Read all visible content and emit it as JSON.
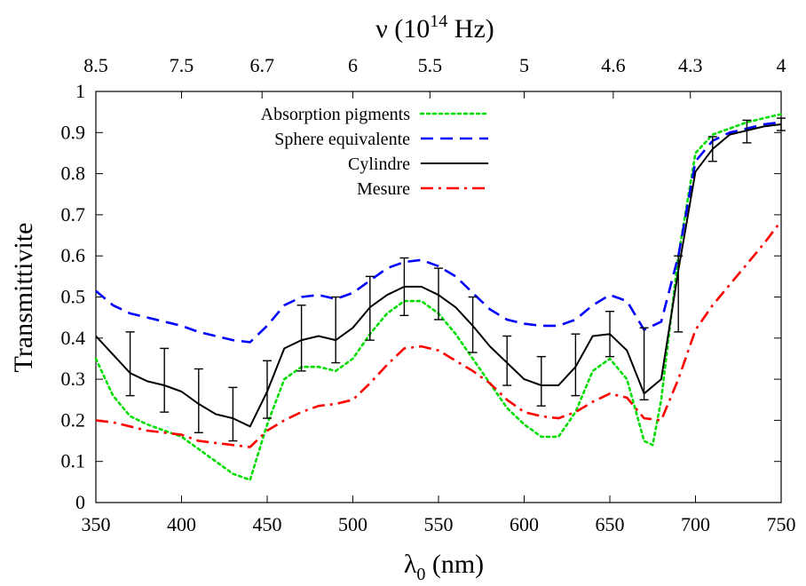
{
  "chart_data": {
    "type": "line",
    "xlabel": "λ",
    "xlabel_sub": "0",
    "xlabel_unit": " (nm)",
    "ylabel": "Transmittivite",
    "x2label": "ν (10",
    "x2label_sup": "14",
    "x2label_unit": " Hz)",
    "xlim": [
      350,
      750
    ],
    "ylim": [
      0,
      1
    ],
    "x_ticks": [
      350,
      400,
      450,
      500,
      550,
      600,
      650,
      700,
      750
    ],
    "y_ticks": [
      0,
      0.1,
      0.2,
      0.3,
      0.4,
      0.5,
      0.6,
      0.7,
      0.8,
      0.9,
      1
    ],
    "y_tick_labels": [
      "0",
      "0.1",
      "0.2",
      "0.3",
      "0.4",
      "0.5",
      "0.6",
      "0.7",
      "0.8",
      "0.9",
      "1"
    ],
    "top_ticks": [
      {
        "wavelength": 350,
        "label": "8.5"
      },
      {
        "wavelength": 400,
        "label": "7.5"
      },
      {
        "wavelength": 447,
        "label": "6.7"
      },
      {
        "wavelength": 500,
        "label": "6"
      },
      {
        "wavelength": 545,
        "label": "5.5"
      },
      {
        "wavelength": 600,
        "label": "5"
      },
      {
        "wavelength": 652,
        "label": "4.6"
      },
      {
        "wavelength": 697,
        "label": "4.3"
      },
      {
        "wavelength": 750,
        "label": "4"
      }
    ],
    "grid": false,
    "legend_position": "top-left",
    "series": [
      {
        "name": "Absorption pigments",
        "color": "#00dd00",
        "style": "dotted",
        "x": [
          350,
          360,
          370,
          380,
          390,
          400,
          410,
          420,
          430,
          440,
          450,
          460,
          470,
          480,
          490,
          500,
          510,
          520,
          530,
          540,
          550,
          560,
          570,
          580,
          590,
          600,
          610,
          620,
          630,
          640,
          650,
          660,
          670,
          675,
          680,
          690,
          700,
          710,
          720,
          730,
          740,
          750
        ],
        "y": [
          0.35,
          0.26,
          0.21,
          0.19,
          0.175,
          0.16,
          0.13,
          0.1,
          0.07,
          0.055,
          0.19,
          0.3,
          0.33,
          0.33,
          0.32,
          0.35,
          0.41,
          0.46,
          0.49,
          0.49,
          0.46,
          0.41,
          0.35,
          0.29,
          0.23,
          0.19,
          0.16,
          0.16,
          0.22,
          0.32,
          0.35,
          0.3,
          0.15,
          0.14,
          0.25,
          0.6,
          0.85,
          0.895,
          0.91,
          0.925,
          0.935,
          0.945
        ]
      },
      {
        "name": "Sphere equivalente",
        "color": "#0000ff",
        "style": "dashed",
        "x": [
          350,
          360,
          370,
          380,
          390,
          400,
          410,
          420,
          430,
          440,
          450,
          460,
          470,
          480,
          490,
          500,
          510,
          520,
          530,
          540,
          550,
          560,
          570,
          580,
          590,
          600,
          610,
          620,
          630,
          640,
          650,
          660,
          670,
          680,
          690,
          700,
          710,
          720,
          730,
          740,
          750
        ],
        "y": [
          0.515,
          0.48,
          0.46,
          0.45,
          0.44,
          0.43,
          0.415,
          0.405,
          0.395,
          0.39,
          0.43,
          0.48,
          0.5,
          0.505,
          0.495,
          0.51,
          0.54,
          0.57,
          0.585,
          0.59,
          0.575,
          0.55,
          0.51,
          0.47,
          0.445,
          0.435,
          0.43,
          0.43,
          0.445,
          0.48,
          0.505,
          0.49,
          0.42,
          0.44,
          0.6,
          0.83,
          0.88,
          0.9,
          0.91,
          0.92,
          0.925
        ]
      },
      {
        "name": "Cylindre",
        "color": "#000000",
        "style": "solid",
        "x": [
          350,
          360,
          370,
          380,
          390,
          400,
          410,
          420,
          430,
          440,
          450,
          460,
          470,
          480,
          490,
          500,
          510,
          520,
          530,
          540,
          550,
          560,
          570,
          580,
          590,
          600,
          610,
          620,
          630,
          640,
          650,
          660,
          670,
          680,
          690,
          700,
          710,
          720,
          730,
          740,
          750
        ],
        "y": [
          0.405,
          0.36,
          0.315,
          0.295,
          0.285,
          0.27,
          0.24,
          0.215,
          0.205,
          0.185,
          0.27,
          0.375,
          0.395,
          0.405,
          0.395,
          0.425,
          0.475,
          0.505,
          0.525,
          0.525,
          0.505,
          0.475,
          0.43,
          0.38,
          0.34,
          0.3,
          0.285,
          0.285,
          0.33,
          0.405,
          0.41,
          0.37,
          0.265,
          0.3,
          0.565,
          0.805,
          0.86,
          0.895,
          0.905,
          0.915,
          0.92
        ],
        "error_bars": {
          "x": [
            370,
            390,
            410,
            430,
            450,
            470,
            490,
            510,
            530,
            550,
            570,
            590,
            610,
            630,
            650,
            670,
            690,
            710,
            730,
            750
          ],
          "low": [
            0.26,
            0.22,
            0.17,
            0.15,
            0.205,
            0.32,
            0.34,
            0.395,
            0.455,
            0.445,
            0.365,
            0.285,
            0.235,
            0.26,
            0.355,
            0.25,
            0.415,
            0.83,
            0.875,
            0.905
          ],
          "high": [
            0.415,
            0.375,
            0.325,
            0.28,
            0.345,
            0.48,
            0.5,
            0.55,
            0.595,
            0.57,
            0.5,
            0.405,
            0.355,
            0.41,
            0.465,
            0.425,
            0.6,
            0.89,
            0.93,
            0.935
          ]
        }
      },
      {
        "name": "Mesure",
        "color": "#ff0000",
        "style": "dash-dot",
        "x": [
          350,
          360,
          370,
          380,
          390,
          400,
          410,
          420,
          430,
          440,
          450,
          460,
          470,
          480,
          490,
          500,
          510,
          520,
          530,
          540,
          550,
          560,
          570,
          580,
          590,
          600,
          610,
          620,
          630,
          640,
          650,
          660,
          670,
          680,
          690,
          700,
          710,
          720,
          730,
          740,
          750
        ],
        "y": [
          0.2,
          0.195,
          0.185,
          0.175,
          0.17,
          0.165,
          0.15,
          0.145,
          0.14,
          0.135,
          0.175,
          0.2,
          0.22,
          0.235,
          0.24,
          0.25,
          0.29,
          0.335,
          0.375,
          0.38,
          0.37,
          0.345,
          0.32,
          0.29,
          0.25,
          0.22,
          0.21,
          0.205,
          0.22,
          0.245,
          0.265,
          0.255,
          0.205,
          0.2,
          0.3,
          0.42,
          0.48,
          0.53,
          0.58,
          0.63,
          0.685
        ]
      }
    ]
  }
}
